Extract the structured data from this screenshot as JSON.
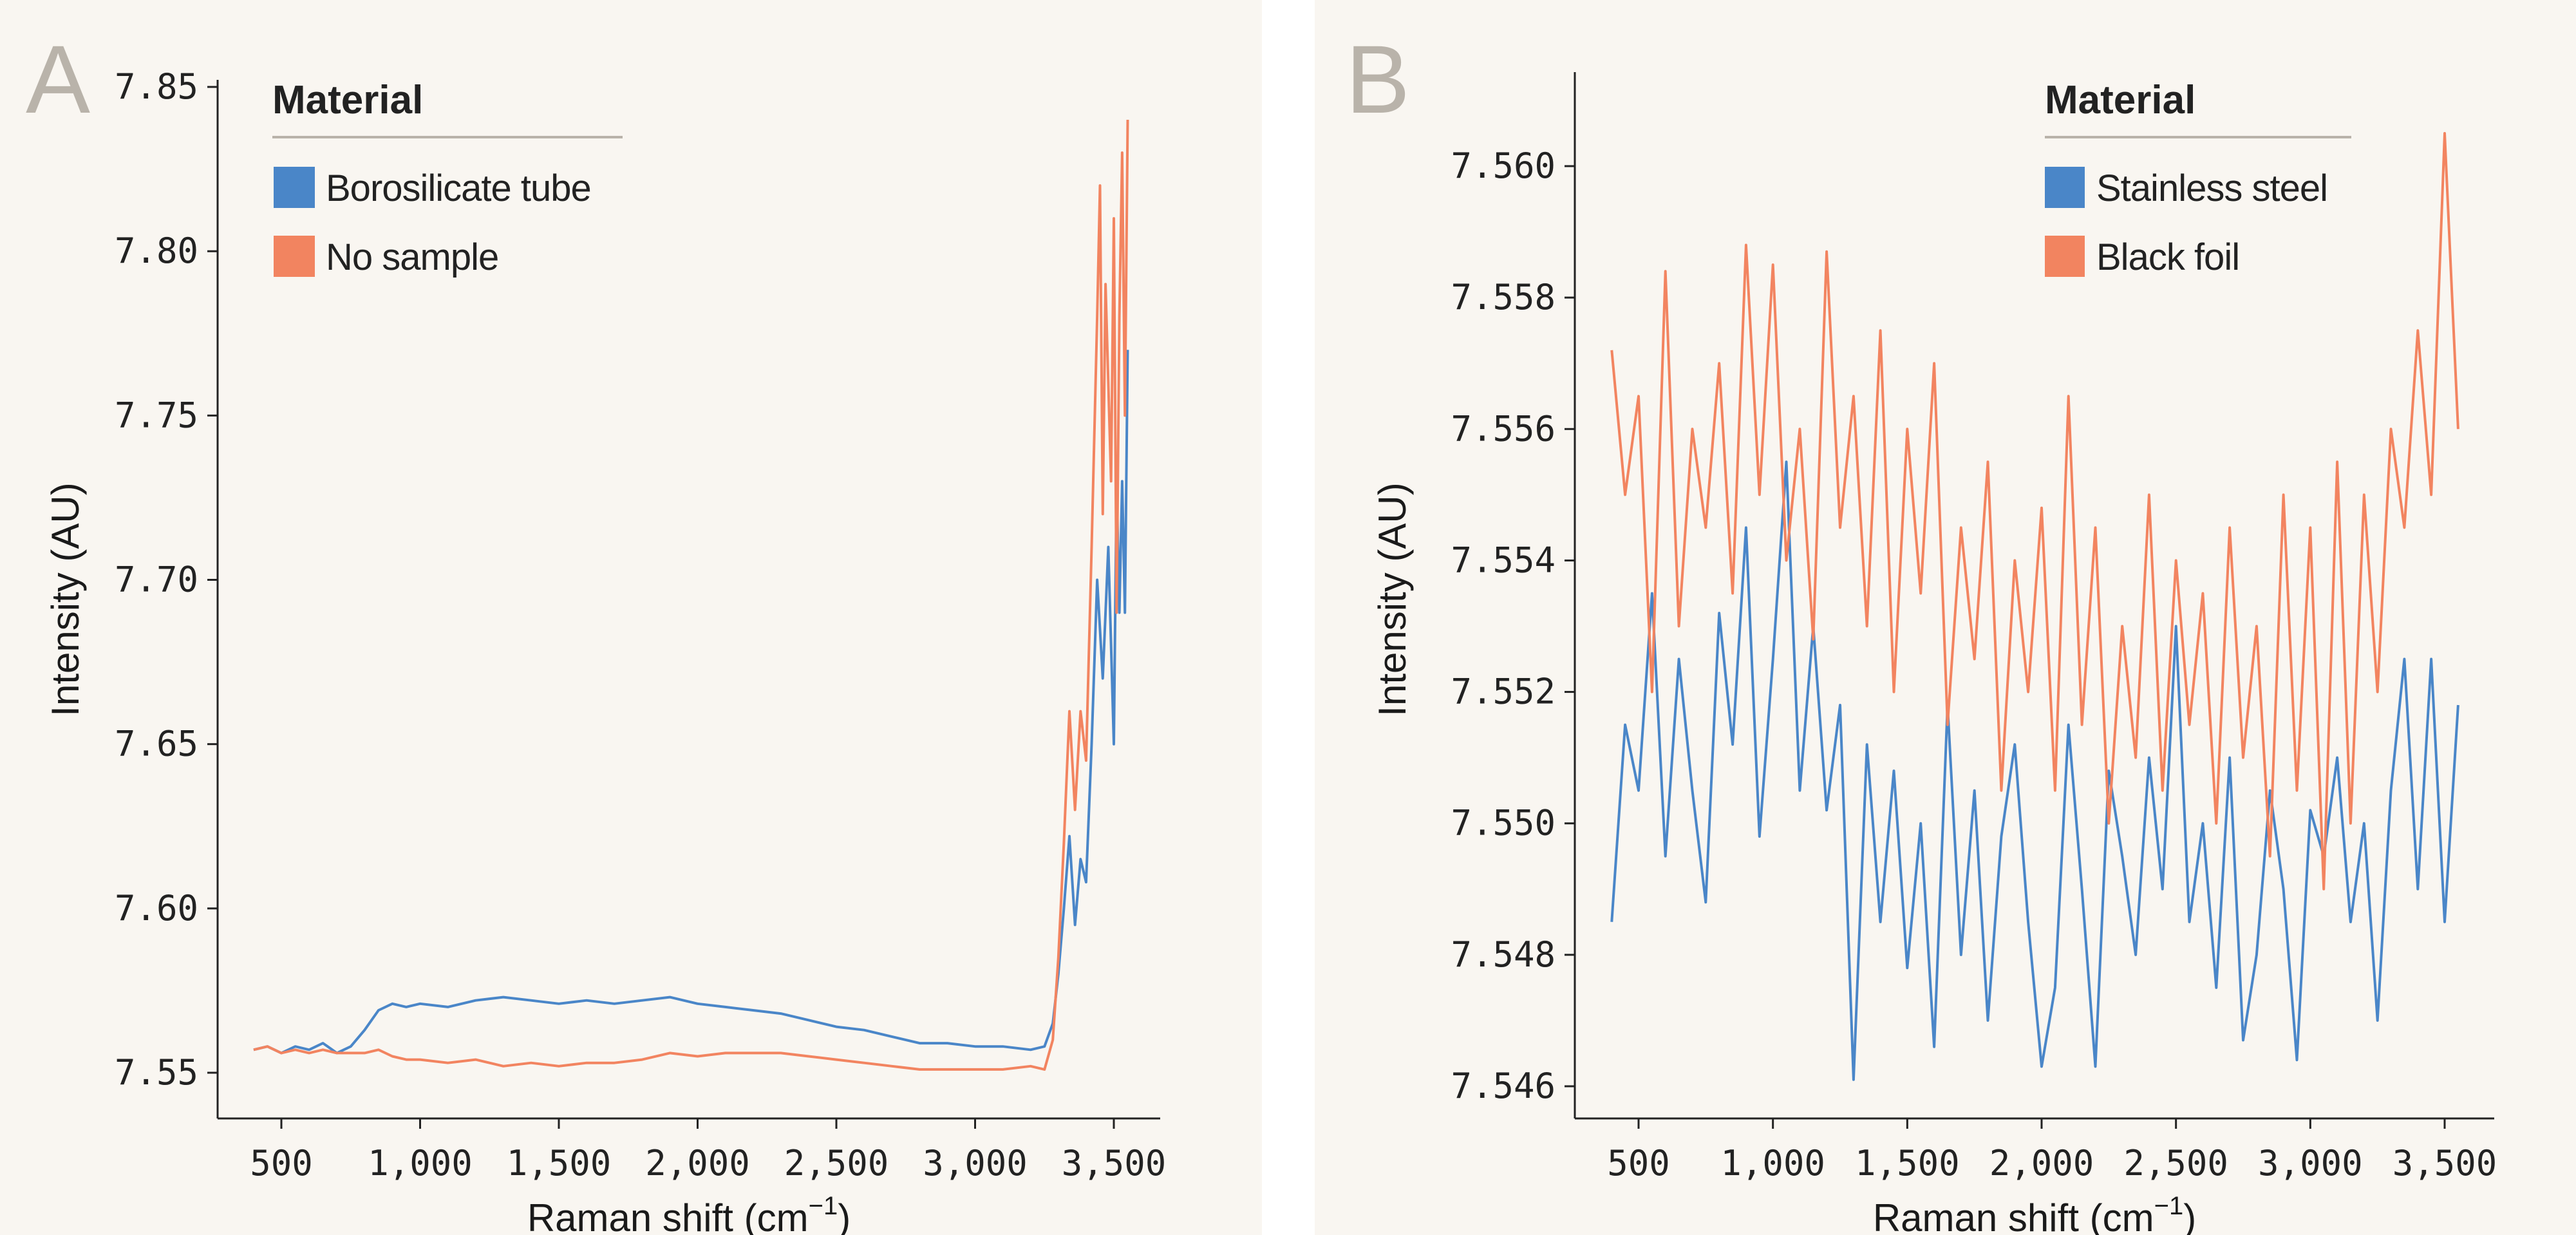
{
  "colors": {
    "background": "#f9f6f1",
    "blue": "#4a86c8",
    "orange": "#f28460",
    "axis": "#222222",
    "legend_rule": "#b9b3aa"
  },
  "chart_data": [
    {
      "panel": "A",
      "type": "line",
      "xlabel": "Raman shift (cm",
      "xlabel_sup": "−1",
      "xlabel_end": ")",
      "ylabel": "Intensity (AU)",
      "xlim": [
        310,
        3660
      ],
      "ylim": [
        7.535,
        7.855
      ],
      "xticks": [
        500,
        1000,
        1500,
        2000,
        2500,
        3000,
        3500
      ],
      "xtick_labels": [
        "500",
        "1,000",
        "1,500",
        "2,000",
        "2,500",
        "3,000",
        "3,500"
      ],
      "yticks": [
        7.55,
        7.6,
        7.65,
        7.7,
        7.75,
        7.8,
        7.85
      ],
      "ytick_labels": [
        "7.55",
        "7.60",
        "7.65",
        "7.70",
        "7.75",
        "7.80",
        "7.85"
      ],
      "grid": false,
      "legend": {
        "title": "Material",
        "placement": "top-left"
      },
      "series": [
        {
          "name": "Borosilicate tube",
          "color": "#4a86c8",
          "x": [
            400,
            450,
            500,
            550,
            600,
            650,
            700,
            750,
            800,
            850,
            900,
            950,
            1000,
            1100,
            1200,
            1300,
            1400,
            1500,
            1600,
            1700,
            1800,
            1900,
            2000,
            2100,
            2200,
            2300,
            2400,
            2500,
            2600,
            2700,
            2800,
            2900,
            3000,
            3100,
            3200,
            3250,
            3280,
            3300,
            3320,
            3340,
            3360,
            3380,
            3400,
            3420,
            3440,
            3460,
            3480,
            3500,
            3510,
            3520,
            3530,
            3540,
            3550
          ],
          "y": [
            7.557,
            7.558,
            7.556,
            7.558,
            7.557,
            7.559,
            7.556,
            7.558,
            7.563,
            7.569,
            7.571,
            7.57,
            7.571,
            7.57,
            7.572,
            7.573,
            7.572,
            7.571,
            7.572,
            7.571,
            7.572,
            7.573,
            7.571,
            7.57,
            7.569,
            7.568,
            7.566,
            7.564,
            7.563,
            7.561,
            7.559,
            7.559,
            7.558,
            7.558,
            7.557,
            7.558,
            7.565,
            7.58,
            7.6,
            7.622,
            7.595,
            7.615,
            7.608,
            7.65,
            7.7,
            7.67,
            7.71,
            7.65,
            7.73,
            7.69,
            7.73,
            7.69,
            7.77
          ]
        },
        {
          "name": "No sample",
          "color": "#f28460",
          "x": [
            400,
            450,
            500,
            550,
            600,
            650,
            700,
            750,
            800,
            850,
            900,
            950,
            1000,
            1100,
            1200,
            1300,
            1400,
            1500,
            1600,
            1700,
            1800,
            1900,
            2000,
            2100,
            2200,
            2300,
            2400,
            2500,
            2600,
            2700,
            2800,
            2900,
            3000,
            3100,
            3200,
            3250,
            3280,
            3300,
            3320,
            3340,
            3360,
            3380,
            3400,
            3420,
            3440,
            3450,
            3460,
            3470,
            3490,
            3500,
            3510,
            3520,
            3530,
            3540,
            3550
          ],
          "y": [
            7.557,
            7.558,
            7.556,
            7.557,
            7.556,
            7.557,
            7.556,
            7.556,
            7.556,
            7.557,
            7.555,
            7.554,
            7.554,
            7.553,
            7.554,
            7.552,
            7.553,
            7.552,
            7.553,
            7.553,
            7.554,
            7.556,
            7.555,
            7.556,
            7.556,
            7.556,
            7.555,
            7.554,
            7.553,
            7.552,
            7.551,
            7.551,
            7.551,
            7.551,
            7.552,
            7.551,
            7.56,
            7.585,
            7.62,
            7.66,
            7.63,
            7.66,
            7.645,
            7.71,
            7.78,
            7.82,
            7.72,
            7.79,
            7.73,
            7.81,
            7.69,
            7.78,
            7.83,
            7.75,
            7.84
          ]
        }
      ]
    },
    {
      "panel": "B",
      "type": "line",
      "xlabel": "Raman shift (cm",
      "xlabel_sup": "−1",
      "xlabel_end": ")",
      "ylabel": "Intensity (AU)",
      "xlim": [
        240,
        3580
      ],
      "ylim": [
        7.5455,
        7.5615
      ],
      "xticks": [
        500,
        1000,
        1500,
        2000,
        2500,
        3000,
        3500
      ],
      "xtick_labels": [
        "500",
        "1,000",
        "1,500",
        "2,000",
        "2,500",
        "3,000",
        "3,500"
      ],
      "yticks": [
        7.546,
        7.548,
        7.55,
        7.552,
        7.554,
        7.556,
        7.558,
        7.56
      ],
      "ytick_labels": [
        "7.546",
        "7.548",
        "7.550",
        "7.552",
        "7.554",
        "7.556",
        "7.558",
        "7.560"
      ],
      "grid": false,
      "legend": {
        "title": "Material",
        "placement": "top-right"
      },
      "series": [
        {
          "name": "Stainless steel",
          "color": "#4a86c8",
          "x": [
            400,
            450,
            500,
            550,
            600,
            650,
            700,
            750,
            800,
            850,
            900,
            950,
            1000,
            1050,
            1100,
            1150,
            1200,
            1250,
            1300,
            1350,
            1400,
            1450,
            1500,
            1550,
            1600,
            1650,
            1700,
            1750,
            1800,
            1850,
            1900,
            1950,
            2000,
            2050,
            2100,
            2150,
            2200,
            2250,
            2300,
            2350,
            2400,
            2450,
            2500,
            2550,
            2600,
            2650,
            2700,
            2750,
            2800,
            2850,
            2900,
            2950,
            3000,
            3050,
            3100,
            3150,
            3200,
            3250,
            3300,
            3350,
            3400,
            3450,
            3500,
            3550
          ],
          "y": [
            7.5485,
            7.5515,
            7.5505,
            7.5535,
            7.5495,
            7.5525,
            7.5505,
            7.5488,
            7.5532,
            7.5512,
            7.5545,
            7.5498,
            7.5525,
            7.5555,
            7.5505,
            7.553,
            7.5502,
            7.5518,
            7.5461,
            7.5512,
            7.5485,
            7.5508,
            7.5478,
            7.55,
            7.5466,
            7.5518,
            7.548,
            7.5505,
            7.547,
            7.5498,
            7.5512,
            7.5485,
            7.5463,
            7.5475,
            7.5515,
            7.549,
            7.5463,
            7.5508,
            7.5495,
            7.548,
            7.551,
            7.549,
            7.553,
            7.5485,
            7.55,
            7.5475,
            7.551,
            7.5467,
            7.548,
            7.5505,
            7.549,
            7.5464,
            7.5502,
            7.5495,
            7.551,
            7.5485,
            7.55,
            7.547,
            7.5505,
            7.5525,
            7.549,
            7.5525,
            7.5485,
            7.5518
          ]
        },
        {
          "name": "Black foil",
          "color": "#f28460",
          "x": [
            400,
            450,
            500,
            550,
            600,
            650,
            700,
            750,
            800,
            850,
            900,
            950,
            1000,
            1050,
            1100,
            1150,
            1200,
            1250,
            1300,
            1350,
            1400,
            1450,
            1500,
            1550,
            1600,
            1650,
            1700,
            1750,
            1800,
            1850,
            1900,
            1950,
            2000,
            2050,
            2100,
            2150,
            2200,
            2250,
            2300,
            2350,
            2400,
            2450,
            2500,
            2550,
            2600,
            2650,
            2700,
            2750,
            2800,
            2850,
            2900,
            2950,
            3000,
            3050,
            3100,
            3150,
            3200,
            3250,
            3300,
            3350,
            3400,
            3450,
            3500,
            3550
          ],
          "y": [
            7.5572,
            7.555,
            7.5565,
            7.552,
            7.5584,
            7.553,
            7.556,
            7.5545,
            7.557,
            7.5535,
            7.5588,
            7.555,
            7.5585,
            7.554,
            7.556,
            7.5528,
            7.5587,
            7.5545,
            7.5565,
            7.553,
            7.5575,
            7.552,
            7.556,
            7.5535,
            7.557,
            7.5515,
            7.5545,
            7.5525,
            7.5555,
            7.5505,
            7.554,
            7.552,
            7.5548,
            7.5505,
            7.5565,
            7.5515,
            7.5545,
            7.55,
            7.553,
            7.551,
            7.555,
            7.5505,
            7.554,
            7.5515,
            7.5535,
            7.55,
            7.5545,
            7.551,
            7.553,
            7.5495,
            7.555,
            7.5505,
            7.5545,
            7.549,
            7.5555,
            7.55,
            7.555,
            7.552,
            7.556,
            7.5545,
            7.5575,
            7.555,
            7.5605,
            7.556
          ]
        }
      ]
    }
  ]
}
